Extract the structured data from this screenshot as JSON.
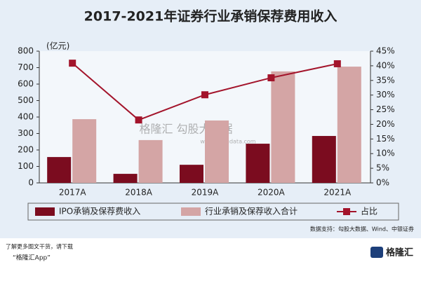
{
  "chart_data": {
    "type": "bar_line",
    "title": "2017-2021年证券行业承销保荐费用收入",
    "y_label": "(亿元)",
    "categories": [
      "2017A",
      "2018A",
      "2019A",
      "2020A",
      "2021A"
    ],
    "series": [
      {
        "name": "IPO承销及保荐费收入",
        "color": "#7b0c1f",
        "type": "bar",
        "values": [
          157,
          55,
          110,
          238,
          285
        ]
      },
      {
        "name": "行业承销及保荐收入合计",
        "color": "#d4a5a5",
        "type": "bar",
        "values": [
          387,
          260,
          379,
          677,
          706
        ]
      },
      {
        "name": "占比",
        "color": "#a3142b",
        "type": "line",
        "axis": "y2",
        "values": [
          40.9,
          21.5,
          30.1,
          35.9,
          40.7
        ]
      }
    ],
    "ylim": [
      0,
      800
    ],
    "yticks": [
      0,
      100,
      200,
      300,
      400,
      500,
      600,
      700,
      800
    ],
    "y2lim": [
      0,
      45
    ],
    "y2ticks": [
      {
        "value": 0,
        "label": "0%"
      },
      {
        "value": 5,
        "label": "5%"
      },
      {
        "value": 10,
        "label": "10%"
      },
      {
        "value": 15,
        "label": "15%"
      },
      {
        "value": 20,
        "label": "20%"
      },
      {
        "value": 25,
        "label": "25%"
      },
      {
        "value": 30,
        "label": "30%"
      },
      {
        "value": 35,
        "label": "35%"
      },
      {
        "value": 40,
        "label": "40%"
      },
      {
        "value": 45,
        "label": "45%"
      }
    ],
    "legend": "bottom",
    "source": "数据支持：勾股大数据、Wind、中银证券",
    "watermark": "格隆汇 勾股大数据",
    "watermark_url": "www.gogudata.com"
  },
  "footer": {
    "line1": "了解更多图文干货，请下载",
    "line2": "“格隆汇App”",
    "logo": "格隆汇"
  }
}
